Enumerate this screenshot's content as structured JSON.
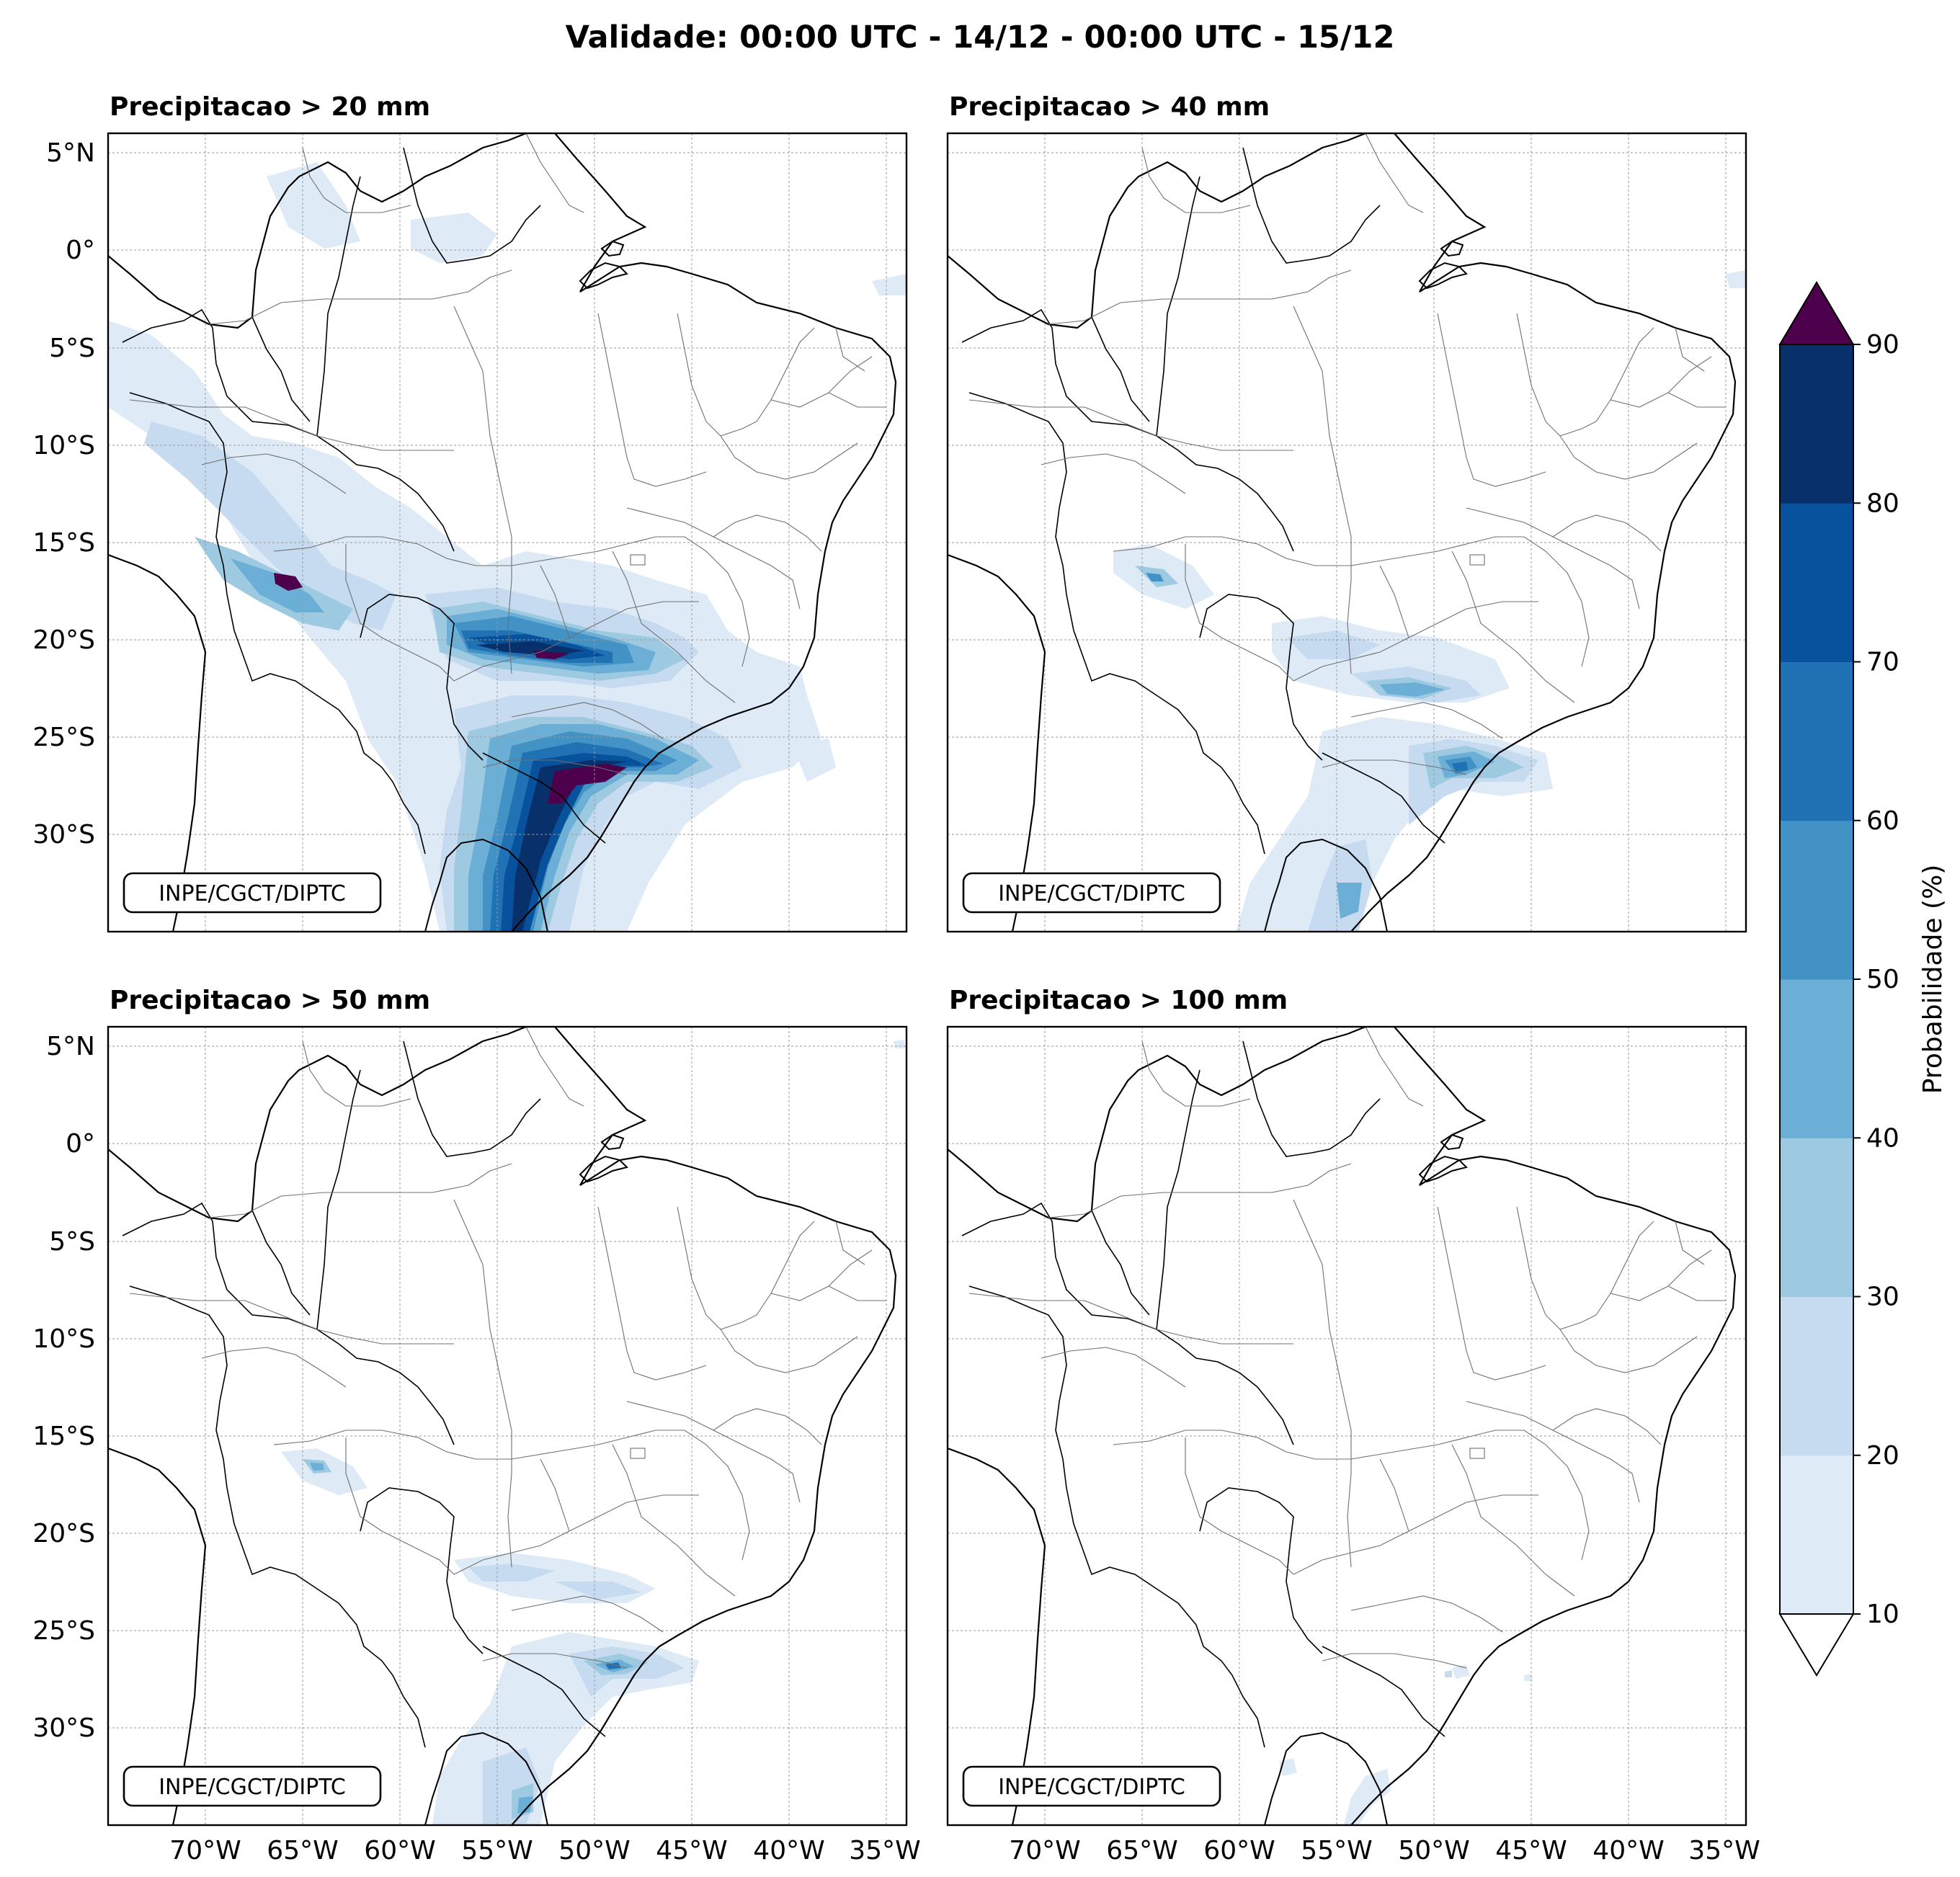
{
  "title": "Validade: 00:00 UTC - 14/12 - 00:00 UTC - 15/12",
  "panels": [
    {
      "title": "Precipitacao > 20 mm",
      "credit": "INPE/CGCT/DIPTC"
    },
    {
      "title": "Precipitacao > 40 mm",
      "credit": "INPE/CGCT/DIPTC"
    },
    {
      "title": "Precipitacao > 50 mm",
      "credit": "INPE/CGCT/DIPTC"
    },
    {
      "title": "Precipitacao > 100 mm",
      "credit": "INPE/CGCT/DIPTC"
    }
  ],
  "lat_ticks": [
    "5°N",
    "0°",
    "5°S",
    "10°S",
    "15°S",
    "20°S",
    "25°S",
    "30°S"
  ],
  "lon_ticks": [
    "70°W",
    "65°W",
    "60°W",
    "55°W",
    "50°W",
    "45°W",
    "40°W",
    "35°W"
  ],
  "colorbar": {
    "label": "Probabilidade (%)",
    "ticks": [
      "10",
      "20",
      "30",
      "40",
      "50",
      "60",
      "70",
      "80",
      "90"
    ],
    "colors": [
      "#deebf7",
      "#c6dbef",
      "#9ecae1",
      "#6baed6",
      "#4292c6",
      "#2171b5",
      "#08519c",
      "#08306b"
    ],
    "over_color": "#4d004b",
    "under_color": "#ffffff"
  }
}
